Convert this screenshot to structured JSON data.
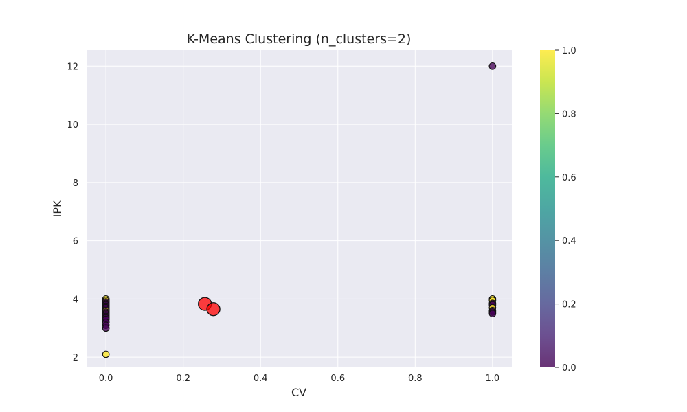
{
  "chart_data": {
    "type": "scatter",
    "title": "K-Means Clustering (n_clusters=2)",
    "xlabel": "CV",
    "ylabel": "IPK",
    "xlim": [
      -0.05,
      1.05
    ],
    "ylim": [
      1.65,
      12.55
    ],
    "xticks": [
      0.0,
      0.2,
      0.4,
      0.6,
      0.8,
      1.0
    ],
    "xtick_labels": [
      "0.0",
      "0.2",
      "0.4",
      "0.6",
      "0.8",
      "1.0"
    ],
    "yticks": [
      2,
      4,
      6,
      8,
      10,
      12
    ],
    "ytick_labels": [
      "2",
      "4",
      "6",
      "8",
      "10",
      "12"
    ],
    "grid": true,
    "colormap": "viridis",
    "colorbar": {
      "ticks": [
        0.0,
        0.2,
        0.4,
        0.6,
        0.8,
        1.0
      ],
      "tick_labels": [
        "0.0",
        "0.2",
        "0.4",
        "0.6",
        "0.8",
        "1.0"
      ]
    },
    "colors": {
      "cluster_0": "#440154",
      "cluster_1": "#fde725",
      "centroid": "#ff0000",
      "plot_bg": "#eaeaf2",
      "grid": "#ffffff"
    },
    "points": [
      {
        "x": 0,
        "y": 4.0,
        "cluster": 1
      },
      {
        "x": 0,
        "y": 3.95,
        "cluster": 1
      },
      {
        "x": 0,
        "y": 3.9,
        "cluster": 0
      },
      {
        "x": 0,
        "y": 3.85,
        "cluster": 0
      },
      {
        "x": 0,
        "y": 3.8,
        "cluster": 0
      },
      {
        "x": 0,
        "y": 3.75,
        "cluster": 0
      },
      {
        "x": 0,
        "y": 3.7,
        "cluster": 0
      },
      {
        "x": 0,
        "y": 3.65,
        "cluster": 0
      },
      {
        "x": 0,
        "y": 3.6,
        "cluster": 1
      },
      {
        "x": 0,
        "y": 3.55,
        "cluster": 0
      },
      {
        "x": 0,
        "y": 3.5,
        "cluster": 0
      },
      {
        "x": 0,
        "y": 3.45,
        "cluster": 0
      },
      {
        "x": 0,
        "y": 3.4,
        "cluster": 0
      },
      {
        "x": 0,
        "y": 3.35,
        "cluster": 0
      },
      {
        "x": 0,
        "y": 3.3,
        "cluster": 0
      },
      {
        "x": 0,
        "y": 3.2,
        "cluster": 0
      },
      {
        "x": 0,
        "y": 3.1,
        "cluster": 0
      },
      {
        "x": 0,
        "y": 3.0,
        "cluster": 0
      },
      {
        "x": 0,
        "y": 2.1,
        "cluster": 1
      },
      {
        "x": 1,
        "y": 12.0,
        "cluster": 0
      },
      {
        "x": 1,
        "y": 4.0,
        "cluster": 1
      },
      {
        "x": 1,
        "y": 3.95,
        "cluster": 1
      },
      {
        "x": 1,
        "y": 3.85,
        "cluster": 0
      },
      {
        "x": 1,
        "y": 3.8,
        "cluster": 0
      },
      {
        "x": 1,
        "y": 3.7,
        "cluster": 1
      },
      {
        "x": 1,
        "y": 3.6,
        "cluster": 0
      },
      {
        "x": 1,
        "y": 3.55,
        "cluster": 0
      },
      {
        "x": 1,
        "y": 3.5,
        "cluster": 0
      }
    ],
    "centroids": [
      {
        "x": 0.256,
        "y": 3.83
      },
      {
        "x": 0.278,
        "y": 3.65
      }
    ]
  }
}
